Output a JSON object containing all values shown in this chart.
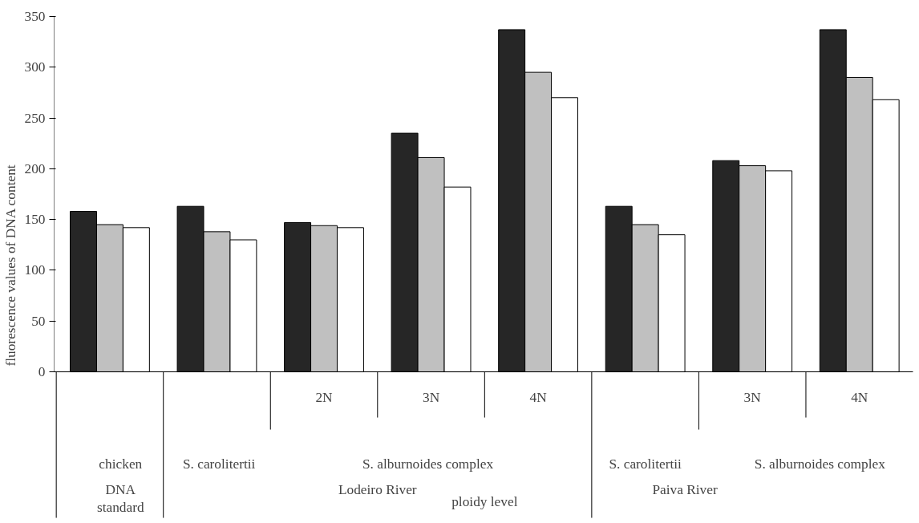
{
  "chart_data": {
    "type": "bar",
    "ylabel": "fluorescence values of DNA content",
    "categories": [
      null,
      null,
      "2N",
      "3N",
      "4N",
      null,
      "3N",
      "4N"
    ],
    "series": [
      {
        "color": "#262626",
        "values": [
          158,
          163,
          147,
          235,
          337,
          163,
          208,
          337
        ]
      },
      {
        "color": "#c0c0c0",
        "values": [
          145,
          138,
          144,
          211,
          295,
          145,
          203,
          290
        ]
      },
      {
        "color": "#ffffff",
        "values": [
          142,
          130,
          142,
          182,
          270,
          135,
          198,
          268
        ]
      }
    ],
    "ylim": [
      0,
      350
    ],
    "yticks": [
      0,
      50,
      100,
      150,
      200,
      250,
      300,
      350
    ],
    "grid": false,
    "annotations": [
      "chicken",
      "DNA",
      "standard",
      "S. carolitertii",
      "S. alburnoides complex",
      "Lodeiro River",
      "ploidy level",
      "S. carolitertii",
      "S. alburnoides complex",
      "Paiva River"
    ]
  }
}
